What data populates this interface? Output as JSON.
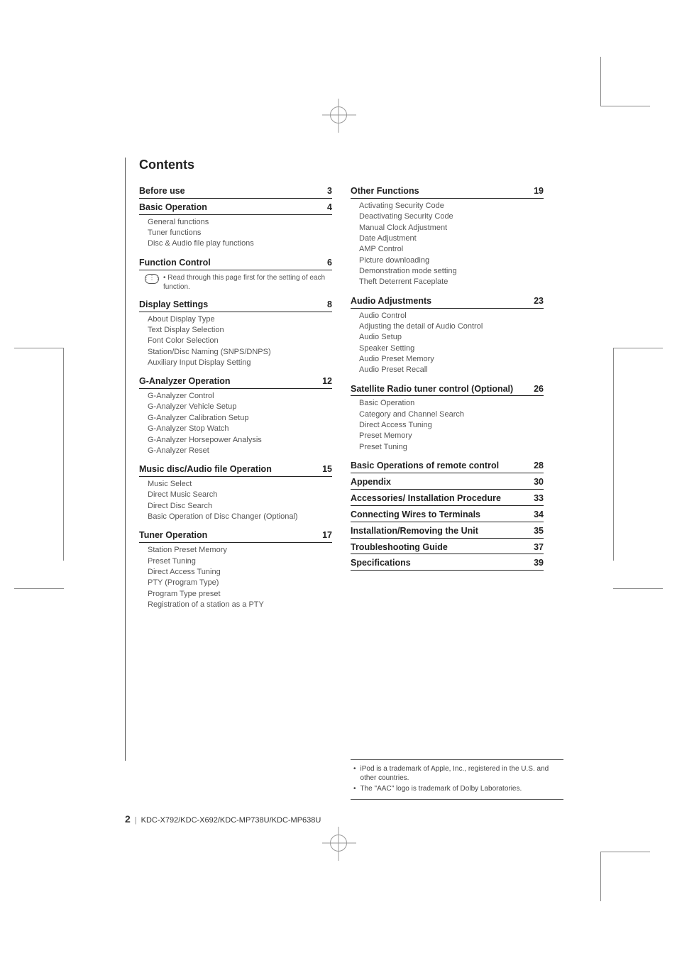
{
  "title": "Contents",
  "columns": [
    [
      {
        "heading": "Before use",
        "page": "3",
        "items": []
      },
      {
        "heading": "Basic Operation",
        "page": "4",
        "items": [
          "General functions",
          "Tuner functions",
          "Disc & Audio file play functions"
        ]
      },
      {
        "heading": "Function Control",
        "page": "6",
        "note": "Read through this page first for the setting of each function.",
        "items": []
      },
      {
        "heading": "Display Settings",
        "page": "8",
        "items": [
          "About Display Type",
          "Text Display Selection",
          "Font Color Selection",
          "Station/Disc Naming (SNPS/DNPS)",
          "Auxiliary Input Display Setting"
        ]
      },
      {
        "heading": "G-Analyzer Operation",
        "page": "12",
        "items": [
          "G-Analyzer Control",
          "G-Analyzer Vehicle Setup",
          "G-Analyzer Calibration Setup",
          "G-Analyzer Stop Watch",
          "G-Analyzer Horsepower Analysis",
          "G-Analyzer Reset"
        ]
      },
      {
        "heading": "Music disc/Audio file Operation",
        "page": "15",
        "items": [
          "Music Select",
          "Direct Music Search",
          "Direct Disc Search",
          "Basic Operation of Disc Changer (Optional)"
        ]
      },
      {
        "heading": "Tuner Operation",
        "page": "17",
        "items": [
          "Station Preset Memory",
          "Preset Tuning",
          "Direct Access Tuning",
          "PTY (Program Type)",
          "Program Type preset",
          "Registration of a station as a PTY"
        ]
      }
    ],
    [
      {
        "heading": "Other Functions",
        "page": "19",
        "items": [
          "Activating Security Code",
          "Deactivating Security Code",
          "Manual Clock Adjustment",
          "Date Adjustment",
          "AMP Control",
          "Picture downloading",
          "Demonstration mode setting",
          "Theft Deterrent Faceplate"
        ]
      },
      {
        "heading": "Audio Adjustments",
        "page": "23",
        "items": [
          "Audio Control",
          "Adjusting the detail of Audio Control",
          "Audio Setup",
          "Speaker Setting",
          "Audio Preset Memory",
          "Audio Preset Recall"
        ]
      },
      {
        "heading": "Satellite Radio tuner control (Optional)",
        "page": "26",
        "items": [
          "Basic Operation",
          "Category and Channel Search",
          "Direct Access Tuning",
          "Preset Memory",
          "Preset Tuning"
        ]
      },
      {
        "heading": "Basic Operations of remote control",
        "page": "28",
        "items": []
      },
      {
        "heading": "Appendix",
        "page": "30",
        "items": []
      },
      {
        "heading": "Accessories/ Installation Procedure",
        "page": "33",
        "items": []
      },
      {
        "heading": "Connecting Wires to Terminals",
        "page": "34",
        "items": []
      },
      {
        "heading": "Installation/Removing the Unit",
        "page": "35",
        "items": []
      },
      {
        "heading": "Troubleshooting Guide",
        "page": "37",
        "items": []
      },
      {
        "heading": "Specifications",
        "page": "39",
        "items": []
      }
    ]
  ],
  "footnotes": [
    "iPod is a trademark of Apple, Inc., registered in the U.S. and other countries.",
    "The \"AAC\" logo is trademark of Dolby Laboratories."
  ],
  "footer": {
    "page_number": "2",
    "models": "KDC-X792/KDC-X692/KDC-MP738U/KDC-MP638U"
  },
  "colors": {
    "text": "#222222",
    "muted": "#555555",
    "rule": "#555555",
    "cropmark": "#999999"
  }
}
